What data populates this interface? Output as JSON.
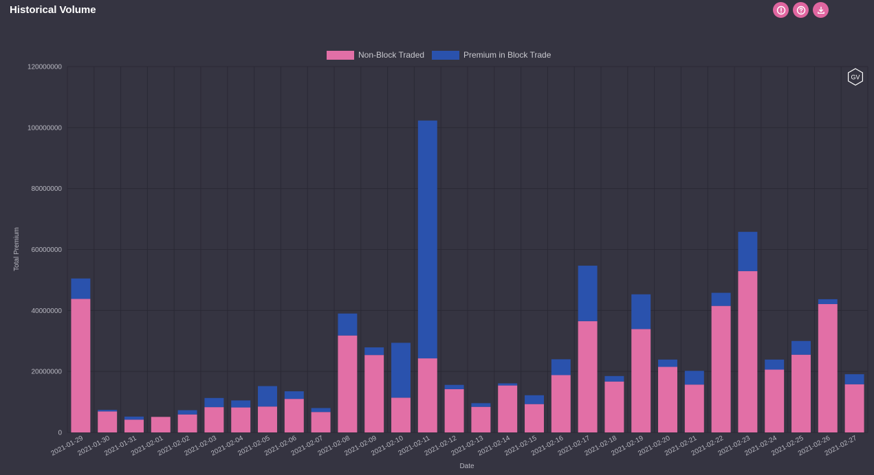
{
  "header": {
    "title": "Historical Volume",
    "buttons": [
      {
        "name": "info-button",
        "icon": "exclamation-circle-icon"
      },
      {
        "name": "help-button",
        "icon": "question-circle-icon"
      },
      {
        "name": "download-button",
        "icon": "download-icon"
      }
    ]
  },
  "colors": {
    "background": "#353441",
    "accent": "#e066a0",
    "non_block": "#e26fa6",
    "block": "#2a52ad",
    "grid": "#2a2935"
  },
  "watermark": {
    "label": "GV",
    "icon": "gv-hexagon-logo-icon"
  },
  "chart_data": {
    "type": "bar",
    "stacked": true,
    "xlabel": "Date",
    "ylabel": "Total Premium",
    "ylim": [
      0,
      120000000
    ],
    "yticks": [
      0,
      20000000,
      40000000,
      60000000,
      80000000,
      100000000,
      120000000
    ],
    "legend_position": "top-center",
    "grid": true,
    "categories": [
      "2021-01-29",
      "2021-01-30",
      "2021-01-31",
      "2021-02-01",
      "2021-02-02",
      "2021-02-03",
      "2021-02-04",
      "2021-02-05",
      "2021-02-06",
      "2021-02-07",
      "2021-02-08",
      "2021-02-09",
      "2021-02-10",
      "2021-02-11",
      "2021-02-12",
      "2021-02-13",
      "2021-02-14",
      "2021-02-15",
      "2021-02-16",
      "2021-02-17",
      "2021-02-18",
      "2021-02-19",
      "2021-02-20",
      "2021-02-21",
      "2021-02-22",
      "2021-02-23",
      "2021-02-24",
      "2021-02-25",
      "2021-02-26",
      "2021-02-27"
    ],
    "series": [
      {
        "name": "Non-Block Traded",
        "color": "#e26fa6",
        "values": [
          43800000,
          6900000,
          4200000,
          5100000,
          5900000,
          8300000,
          8200000,
          8500000,
          11000000,
          6700000,
          31800000,
          25400000,
          11400000,
          24300000,
          14200000,
          8400000,
          15400000,
          9300000,
          18800000,
          36500000,
          16700000,
          33900000,
          21500000,
          15700000,
          41500000,
          52900000,
          20600000,
          25500000,
          42100000,
          15800000
        ]
      },
      {
        "name": "Premium in Block Trade",
        "color": "#2a52ad",
        "values": [
          6700000,
          500000,
          1000000,
          0,
          1400000,
          3000000,
          2300000,
          6700000,
          2500000,
          1300000,
          7200000,
          2500000,
          18000000,
          78000000,
          1400000,
          1200000,
          700000,
          2900000,
          5200000,
          18200000,
          1800000,
          11400000,
          2400000,
          4500000,
          4300000,
          12900000,
          3300000,
          4500000,
          1600000,
          3300000
        ]
      }
    ]
  }
}
